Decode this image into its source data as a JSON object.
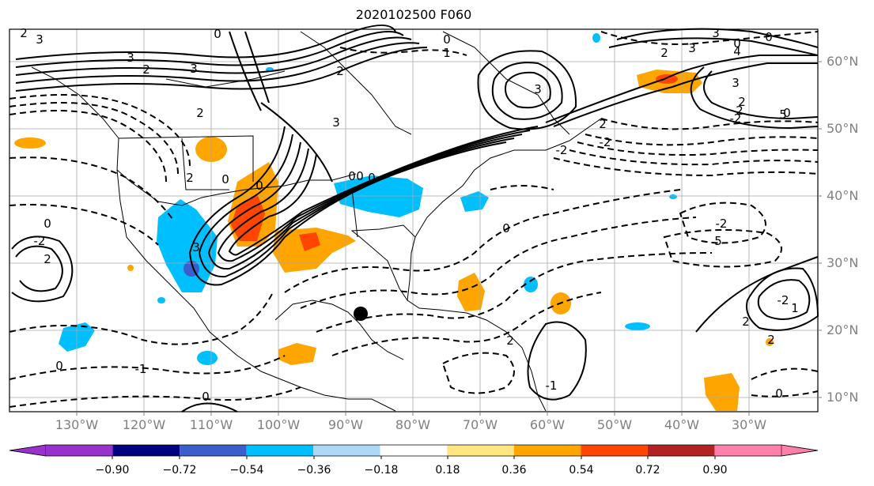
{
  "title": "2020102500 F060",
  "lat_labels": [
    "60°N",
    "50°N",
    "40°N",
    "30°N",
    "20°N",
    "10°N"
  ],
  "lon_labels": [
    "130°W",
    "120°W",
    "110°W",
    "100°W",
    "90°W",
    "80°W",
    "70°W",
    "60°W",
    "50°W",
    "40°W",
    "30°W"
  ],
  "colorbar": {
    "ticks": [
      "−0.90",
      "−0.72",
      "−0.54",
      "−0.36",
      "−0.18",
      "0.18",
      "0.36",
      "0.54",
      "0.72",
      "0.90"
    ],
    "colors": [
      "#9932cc",
      "#000080",
      "#3a5fcd",
      "#00bfff",
      "#add8f6",
      "#ffffff",
      "#ffe680",
      "#ffa500",
      "#ff4500",
      "#b22222",
      "#ff80ab"
    ]
  },
  "contour_labels": [
    "2",
    "3",
    "0",
    "3",
    "2",
    "3",
    "2",
    "3",
    "2",
    "1",
    "0",
    "2",
    "0",
    "0",
    "0",
    "-2",
    "2",
    "-2",
    "5",
    "0",
    "2",
    "-2",
    "2",
    "-2",
    "0",
    "2",
    "0",
    "-1",
    "0",
    "0",
    "-1",
    "0",
    "-2",
    "1",
    "2",
    "2",
    "0",
    "2",
    "-2",
    "3",
    "5",
    "3",
    "0",
    "0",
    "0",
    "3",
    "2",
    "3",
    "4",
    "3"
  ]
}
